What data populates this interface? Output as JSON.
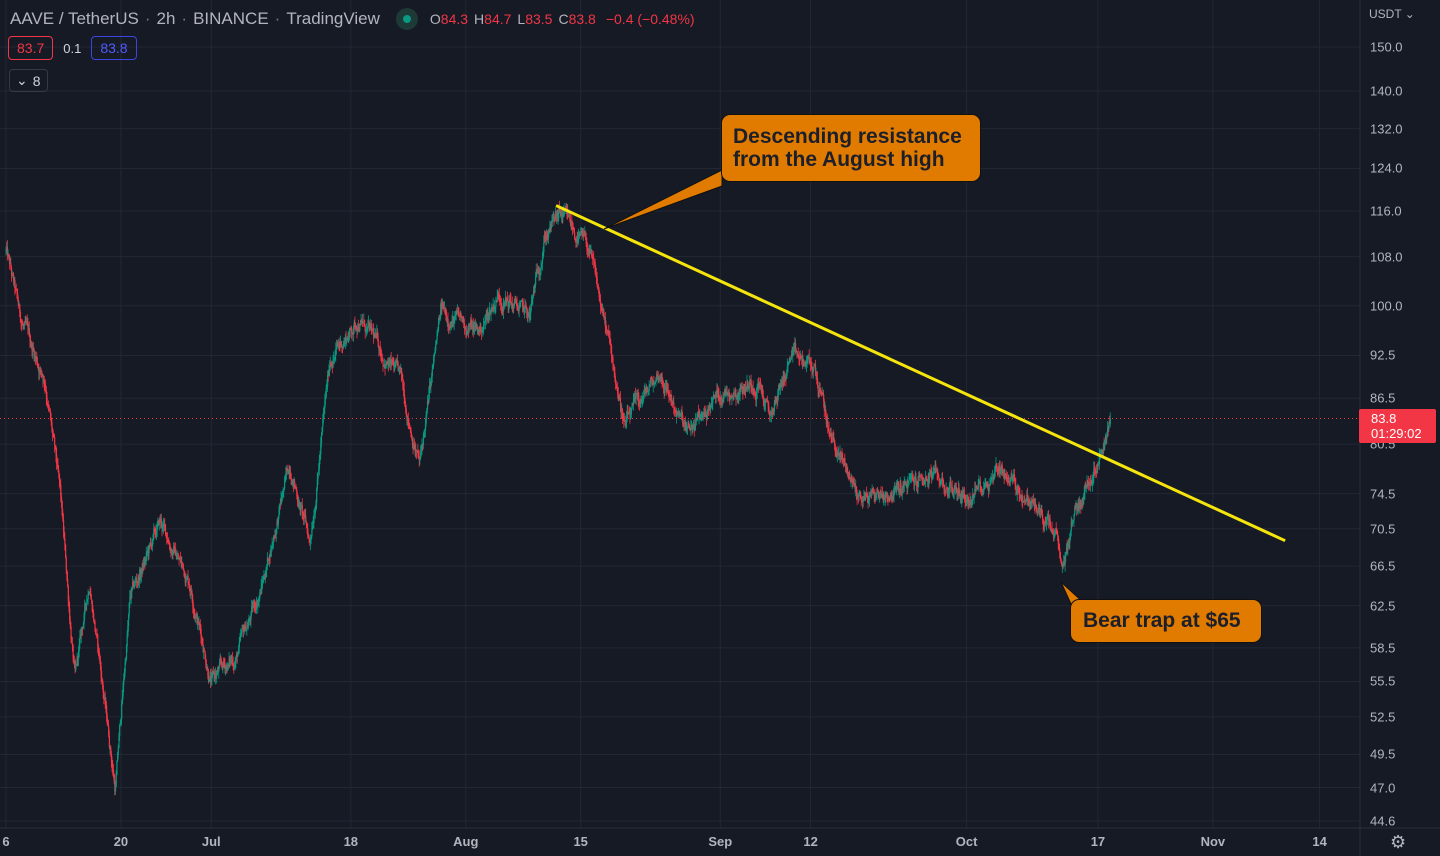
{
  "header": {
    "symbol": "AAVE / TetherUS",
    "sep": "·",
    "interval": "2h",
    "exchange": "BINANCE",
    "source": "TradingView",
    "ohlc": {
      "o_label": "O",
      "o": "84.3",
      "h_label": "H",
      "h": "84.7",
      "l_label": "L",
      "l": "83.5",
      "c_label": "C",
      "c": "83.8"
    },
    "change": "−0.4 (−0.48%)",
    "bid": "83.7",
    "spread": "0.1",
    "ask": "83.8",
    "indicators_toggle": "⌄",
    "indicators_count": "8"
  },
  "price_axis": {
    "currency": "USDT ⌄",
    "last_price": "83.8",
    "countdown": "01:29:02"
  },
  "settings_icon": "⚙",
  "annotations": {
    "resistance": [
      "Descending resistance",
      "from the August high"
    ],
    "bear_trap": "Bear trap at $65"
  },
  "colors": {
    "up": "#089981",
    "down": "#f23645",
    "trend": "#f5e50c",
    "callout": "#e07b00",
    "bg": "#161a25",
    "grid": "#232734"
  },
  "chart_data": {
    "type": "candlestick",
    "scale": "log",
    "x_unit": "days since Jun 6",
    "candles_per_day": 12,
    "ylim": [
      44.6,
      150
    ],
    "y_ticks": [
      "150.0",
      "140.0",
      "132.0",
      "124.0",
      "116.0",
      "108.0",
      "100.0",
      "92.5",
      "86.5",
      "80.5",
      "74.5",
      "70.5",
      "66.5",
      "62.5",
      "58.5",
      "55.5",
      "52.5",
      "49.5",
      "47.0",
      "44.6"
    ],
    "x_ticks": [
      {
        "day": 0,
        "label": "6"
      },
      {
        "day": 14,
        "label": "20"
      },
      {
        "day": 25,
        "label": "Jul"
      },
      {
        "day": 42,
        "label": "18"
      },
      {
        "day": 56,
        "label": "Aug"
      },
      {
        "day": 70,
        "label": "15"
      },
      {
        "day": 87,
        "label": "Sep"
      },
      {
        "day": 98,
        "label": "12"
      },
      {
        "day": 117,
        "label": "Oct"
      },
      {
        "day": 133,
        "label": "17"
      },
      {
        "day": 147,
        "label": "Nov"
      },
      {
        "day": 160,
        "label": "14"
      }
    ],
    "price_path": [
      [
        0,
        109
      ],
      [
        1.7,
        98
      ],
      [
        4.8,
        89
      ],
      [
        6.6,
        74
      ],
      [
        8.4,
        55.6
      ],
      [
        10.2,
        65
      ],
      [
        13.3,
        47
      ],
      [
        15.1,
        63
      ],
      [
        18.8,
        71
      ],
      [
        22.4,
        65
      ],
      [
        25,
        55.6
      ],
      [
        28,
        57.6
      ],
      [
        31,
        64
      ],
      [
        34.6,
        78
      ],
      [
        37,
        69
      ],
      [
        39.5,
        92
      ],
      [
        43,
        98
      ],
      [
        48,
        89
      ],
      [
        50.4,
        78
      ],
      [
        53,
        99
      ],
      [
        57.7,
        96
      ],
      [
        60,
        102
      ],
      [
        63.8,
        98
      ],
      [
        65.6,
        112
      ],
      [
        67.5,
        115
      ],
      [
        71,
        109
      ],
      [
        73.5,
        93.7
      ],
      [
        75.4,
        82.8
      ],
      [
        79.7,
        90
      ],
      [
        83,
        81.5
      ],
      [
        87,
        87.4
      ],
      [
        91.8,
        89
      ],
      [
        93,
        83.6
      ],
      [
        95.5,
        92
      ],
      [
        98.5,
        90.5
      ],
      [
        100.4,
        81.5
      ],
      [
        104,
        74
      ],
      [
        109,
        75
      ],
      [
        112.5,
        76.5
      ],
      [
        117.4,
        74
      ],
      [
        121,
        78
      ],
      [
        126,
        72
      ],
      [
        128,
        69
      ],
      [
        128.6,
        65
      ],
      [
        130,
        72
      ],
      [
        132.6,
        78
      ],
      [
        134.5,
        83.8
      ]
    ],
    "trendline": {
      "from": [
        67,
        117
      ],
      "to": [
        155.8,
        69.2
      ]
    },
    "last_close": 83.8
  }
}
